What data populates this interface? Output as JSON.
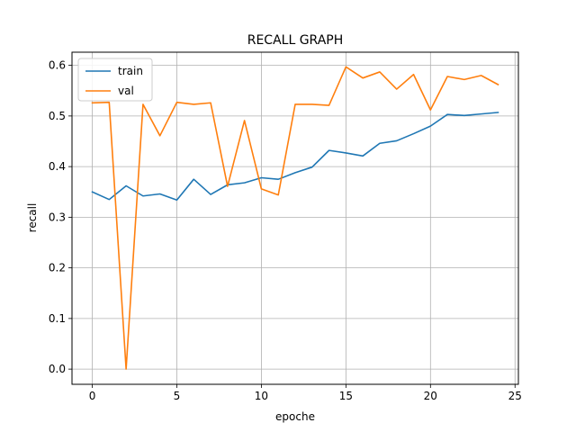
{
  "chart_data": {
    "type": "line",
    "title": "RECALL GRAPH",
    "xlabel": "epoche",
    "ylabel": "recall",
    "xlim": [
      -1.2,
      25.2
    ],
    "ylim": [
      -0.03,
      0.626
    ],
    "xticks": [
      0,
      5,
      10,
      15,
      20,
      25
    ],
    "yticks": [
      0.0,
      0.1,
      0.2,
      0.3,
      0.4,
      0.5,
      0.6
    ],
    "xtick_labels": [
      "0",
      "5",
      "10",
      "15",
      "20",
      "25"
    ],
    "ytick_labels": [
      "0.0",
      "0.1",
      "0.2",
      "0.3",
      "0.4",
      "0.5",
      "0.6"
    ],
    "grid": true,
    "legend_position": "top-left",
    "x": [
      0,
      1,
      2,
      3,
      4,
      5,
      6,
      7,
      8,
      9,
      10,
      11,
      12,
      13,
      14,
      15,
      16,
      17,
      18,
      19,
      20,
      21,
      22,
      23,
      24
    ],
    "series": [
      {
        "name": "train",
        "color": "#1f77b4",
        "values": [
          0.35,
          0.335,
          0.362,
          0.342,
          0.346,
          0.334,
          0.375,
          0.345,
          0.364,
          0.368,
          0.378,
          0.375,
          0.388,
          0.399,
          0.432,
          0.427,
          0.421,
          0.446,
          0.451,
          0.465,
          0.48,
          0.503,
          0.501,
          0.504,
          0.507
        ]
      },
      {
        "name": "val",
        "color": "#ff7f0e",
        "values": [
          0.526,
          0.527,
          0.0,
          0.523,
          0.461,
          0.527,
          0.523,
          0.526,
          0.361,
          0.491,
          0.356,
          0.344,
          0.523,
          0.523,
          0.521,
          0.597,
          0.575,
          0.587,
          0.553,
          0.582,
          0.512,
          0.578,
          0.572,
          0.58,
          0.562
        ]
      }
    ]
  }
}
